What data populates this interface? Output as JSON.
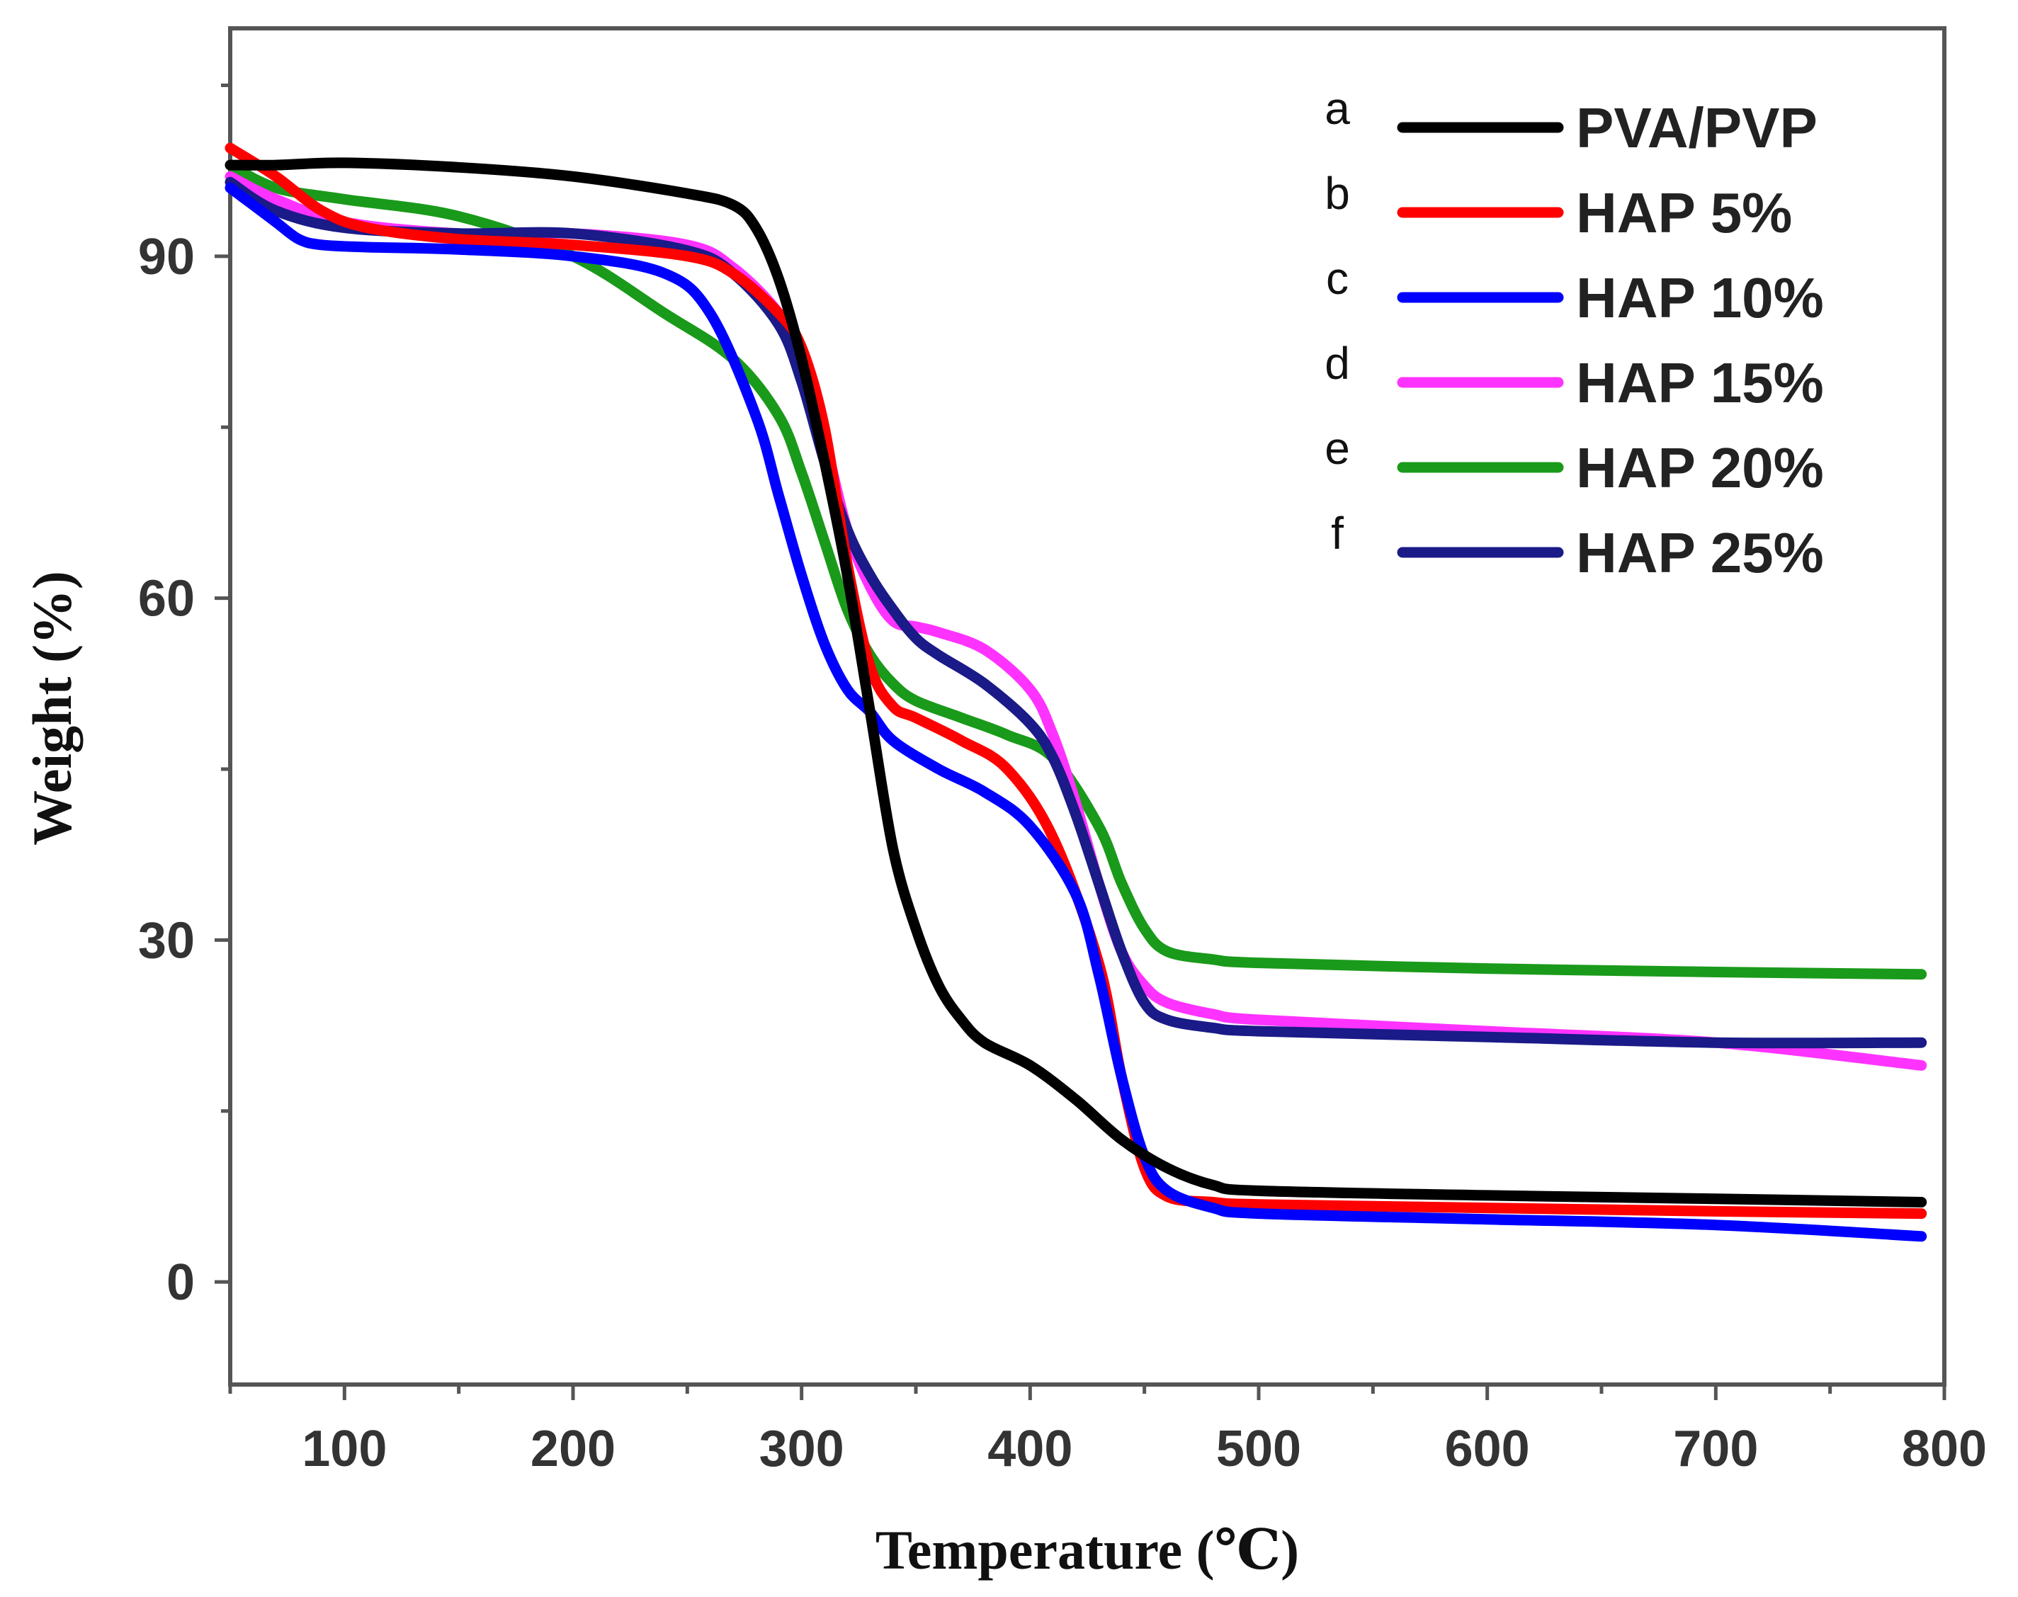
{
  "chart_data": {
    "type": "line",
    "title": "",
    "xlabel": "Temperature (℃)",
    "ylabel": "Weight (%)",
    "xlim": [
      50,
      800
    ],
    "ylim": [
      -9,
      110
    ],
    "xticks": [
      100,
      200,
      300,
      400,
      500,
      600,
      700,
      800
    ],
    "yticks": [
      0,
      30,
      60,
      90
    ],
    "grid": false,
    "legend_position": "top-right",
    "series": [
      {
        "letter": "a",
        "name": "PVA/PVP",
        "color": "#000000",
        "x": [
          50,
          70,
          100,
          150,
          200,
          250,
          270,
          280,
          290,
          300,
          310,
          320,
          330,
          340,
          350,
          360,
          370,
          380,
          400,
          420,
          440,
          460,
          480,
          500,
          600,
          700,
          790
        ],
        "y": [
          98,
          98,
          98.2,
          97.8,
          97,
          95.5,
          94.5,
          92.5,
          88,
          81,
          72,
          62,
          50,
          38,
          31,
          26,
          23,
          21,
          19,
          16,
          12.5,
          10,
          8.5,
          8,
          7.6,
          7.3,
          7
        ]
      },
      {
        "letter": "b",
        "name": "HAP 5%",
        "color": "#ff0000",
        "x": [
          50,
          70,
          90,
          110,
          150,
          200,
          250,
          270,
          290,
          300,
          310,
          320,
          330,
          340,
          350,
          370,
          390,
          410,
          430,
          440,
          450,
          460,
          480,
          500,
          600,
          700,
          790
        ],
        "y": [
          99.5,
          97,
          94,
          92.5,
          91.5,
          91,
          90,
          88.5,
          85,
          82,
          75,
          63,
          54,
          50.5,
          49.5,
          47.5,
          45,
          39,
          28,
          18,
          10,
          7.5,
          7,
          6.8,
          6.5,
          6.2,
          6
        ]
      },
      {
        "letter": "c",
        "name": "HAP 10%",
        "color": "#0000ff",
        "x": [
          50,
          60,
          70,
          80,
          90,
          110,
          150,
          200,
          240,
          260,
          280,
          290,
          300,
          310,
          320,
          330,
          340,
          360,
          380,
          400,
          420,
          430,
          440,
          450,
          460,
          480,
          500,
          600,
          700,
          790
        ],
        "y": [
          96,
          94.5,
          93,
          91.5,
          91,
          90.8,
          90.6,
          90,
          88.5,
          85,
          76,
          69,
          62,
          56,
          52,
          50,
          47.5,
          45,
          43,
          40,
          34,
          27,
          18,
          11,
          8,
          6.5,
          6,
          5.5,
          5,
          4
        ]
      },
      {
        "letter": "d",
        "name": "HAP 15%",
        "color": "#ff33ff",
        "x": [
          50,
          70,
          100,
          150,
          200,
          250,
          270,
          290,
          300,
          310,
          320,
          330,
          340,
          350,
          360,
          380,
          400,
          410,
          420,
          430,
          440,
          450,
          460,
          480,
          500,
          600,
          700,
          790
        ],
        "y": [
          97,
          95,
          93,
          92,
          92,
          91,
          89,
          85,
          81,
          74,
          66,
          61,
          58,
          57.5,
          57,
          55.5,
          52,
          48,
          42,
          35,
          29,
          26,
          24.5,
          23.5,
          23,
          22,
          21,
          19
        ]
      },
      {
        "letter": "e",
        "name": "HAP 20%",
        "color": "#1a9a1a",
        "x": [
          50,
          70,
          100,
          150,
          200,
          240,
          270,
          290,
          300,
          310,
          320,
          330,
          340,
          350,
          370,
          390,
          410,
          430,
          440,
          450,
          460,
          480,
          500,
          600,
          700,
          790
        ],
        "y": [
          98,
          96,
          95,
          93.5,
          90,
          85,
          81,
          76,
          71,
          65,
          59,
          55,
          52.5,
          51,
          49.5,
          48,
          46,
          40,
          35,
          31,
          29,
          28.3,
          28,
          27.5,
          27.2,
          27
        ]
      },
      {
        "letter": "f",
        "name": "HAP 25%",
        "color": "#1a1a88",
        "x": [
          50,
          70,
          100,
          150,
          200,
          250,
          270,
          290,
          300,
          310,
          320,
          330,
          340,
          350,
          360,
          380,
          400,
          410,
          420,
          430,
          440,
          450,
          460,
          480,
          500,
          600,
          700,
          790
        ],
        "y": [
          96.5,
          94,
          92.5,
          92,
          92,
          90.5,
          88.5,
          84,
          79,
          72,
          66,
          62,
          59,
          56.5,
          55,
          52.5,
          49,
          46,
          41,
          35,
          29,
          24.5,
          23,
          22.3,
          22,
          21.5,
          21,
          21
        ]
      }
    ]
  }
}
